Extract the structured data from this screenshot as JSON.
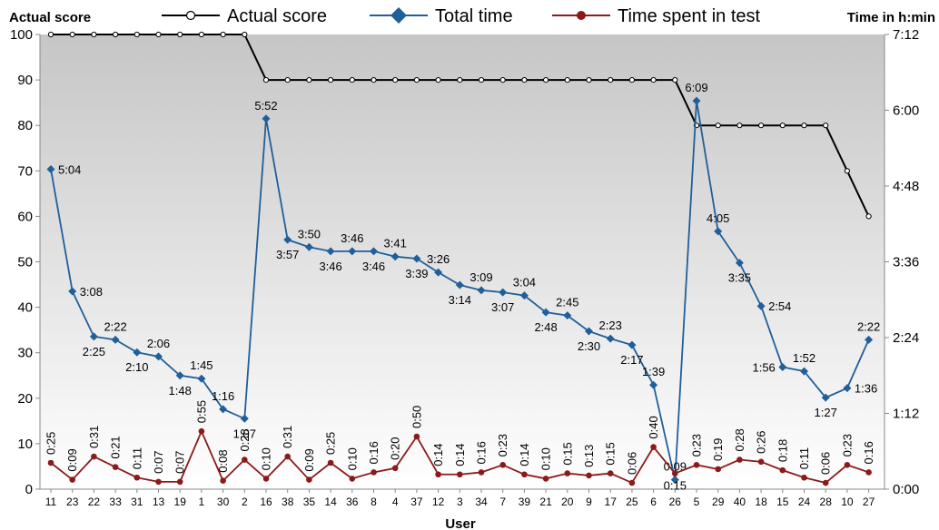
{
  "chart_data": {
    "type": "line",
    "xlabel": "User",
    "ylabel_left": "Actual score",
    "ylabel_right": "Time in h:min",
    "categories": [
      "11",
      "23",
      "22",
      "33",
      "31",
      "13",
      "19",
      "1",
      "30",
      "2",
      "16",
      "38",
      "35",
      "14",
      "36",
      "8",
      "4",
      "37",
      "12",
      "3",
      "34",
      "7",
      "39",
      "21",
      "20",
      "9",
      "17",
      "25",
      "6",
      "26",
      "5",
      "29",
      "40",
      "18",
      "15",
      "24",
      "28",
      "10",
      "27"
    ],
    "y_left": {
      "min": 0,
      "max": 100,
      "ticks": [
        "0",
        "10",
        "20",
        "30",
        "40",
        "50",
        "60",
        "70",
        "80",
        "90",
        "100"
      ]
    },
    "y_right": {
      "min_minutes": 0,
      "max_minutes": 432,
      "ticks": [
        "0:00",
        "1:12",
        "2:24",
        "3:36",
        "4:48",
        "6:00",
        "7:12"
      ]
    },
    "grid": false,
    "legend_position": "top",
    "series": [
      {
        "name": "Actual score",
        "axis": "left",
        "color": "#000000",
        "marker": "open-circle",
        "values": [
          100,
          100,
          100,
          100,
          100,
          100,
          100,
          100,
          100,
          100,
          90,
          90,
          90,
          90,
          90,
          90,
          90,
          90,
          90,
          90,
          90,
          90,
          90,
          90,
          90,
          90,
          90,
          90,
          90,
          90,
          80,
          80,
          80,
          80,
          80,
          80,
          80,
          70,
          60
        ]
      },
      {
        "name": "Total time",
        "axis": "right",
        "color": "#1F5F9A",
        "marker": "diamond",
        "values": [
          "5:04",
          "3:08",
          "2:25",
          "2:22",
          "2:10",
          "2:06",
          "1:48",
          "1:45",
          "1:16",
          "1:07",
          "5:52",
          "3:57",
          "3:50",
          "3:46",
          "3:46",
          "3:46",
          "3:41",
          "3:39",
          "3:26",
          "3:14",
          "3:09",
          "3:07",
          "3:04",
          "2:48",
          "2:45",
          "2:30",
          "2:23",
          "2:17",
          "1:39",
          "0:09",
          "6:09",
          "4:05",
          "3:35",
          "2:54",
          "1:56",
          "1:52",
          "1:27",
          "1:36",
          "2:22"
        ],
        "label_placement": [
          "r",
          "r",
          "b",
          "t",
          "b",
          "t",
          "b",
          "t",
          "t",
          "b",
          "t",
          "b",
          "t",
          "b",
          "t",
          "b",
          "t",
          "b",
          "t",
          "b",
          "t",
          "b",
          "t",
          "b",
          "t",
          "b",
          "t",
          "b",
          "t",
          "t",
          "t",
          "t",
          "b",
          "r",
          "l",
          "t",
          "b",
          "r",
          "t"
        ]
      },
      {
        "name": "Time spent in test",
        "axis": "right",
        "color": "#8B1A1A",
        "marker": "circle",
        "values": [
          "0:25",
          "0:09",
          "0:31",
          "0:21",
          "0:11",
          "0:07",
          "0:07",
          "0:55",
          "0:08",
          "0:28",
          "0:10",
          "0:31",
          "0:09",
          "0:25",
          "0:10",
          "0:16",
          "0:20",
          "0:50",
          "0:14",
          "0:14",
          "0:16",
          "0:23",
          "0:14",
          "0:10",
          "0:15",
          "0:13",
          "0:15",
          "0:06",
          "0:40",
          "0:15",
          "0:23",
          "0:19",
          "0:28",
          "0:26",
          "0:18",
          "0:11",
          "0:06",
          "0:23",
          "0:16"
        ],
        "label_placement": [
          "v",
          "v",
          "v",
          "v",
          "v",
          "v",
          "v",
          "v",
          "v",
          "v",
          "v",
          "v",
          "v",
          "v",
          "v",
          "v",
          "v",
          "v",
          "v",
          "v",
          "v",
          "v",
          "v",
          "v",
          "v",
          "v",
          "v",
          "v",
          "v",
          "b",
          "v",
          "v",
          "v",
          "v",
          "v",
          "v",
          "v",
          "v",
          "v"
        ]
      }
    ]
  }
}
